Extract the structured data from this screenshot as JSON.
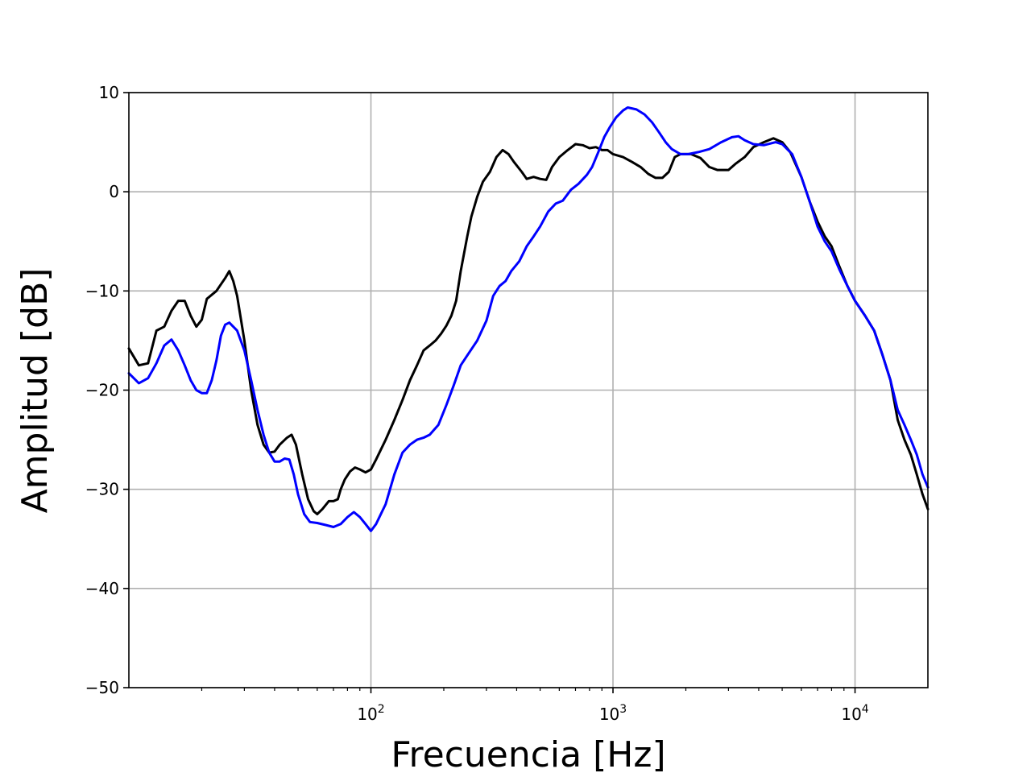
{
  "chart_data": {
    "type": "line",
    "xlabel": "Frecuencia [Hz]",
    "ylabel": "Amplitud [dB]",
    "xscale": "log",
    "xlim": [
      10,
      20000
    ],
    "ylim": [
      -50,
      10
    ],
    "grid": true,
    "x_ticks": [
      {
        "value": 100,
        "base": "10",
        "exp": "2"
      },
      {
        "value": 1000,
        "base": "10",
        "exp": "3"
      },
      {
        "value": 10000,
        "base": "10",
        "exp": "4"
      }
    ],
    "y_ticks": [
      10,
      0,
      -10,
      -20,
      -30,
      -40,
      -50
    ],
    "y_tick_labels": [
      "10",
      "0",
      "−10",
      "−20",
      "−30",
      "−40",
      "−50"
    ],
    "series": [
      {
        "color": "#000000",
        "points": [
          [
            10,
            -15.8
          ],
          [
            11,
            -17.5
          ],
          [
            12,
            -17.3
          ],
          [
            13,
            -14.0
          ],
          [
            14,
            -13.6
          ],
          [
            15,
            -12.0
          ],
          [
            16,
            -11.0
          ],
          [
            17,
            -11.0
          ],
          [
            18,
            -12.5
          ],
          [
            19,
            -13.6
          ],
          [
            20,
            -12.9
          ],
          [
            21,
            -10.8
          ],
          [
            23,
            -10.0
          ],
          [
            25,
            -8.7
          ],
          [
            26,
            -8.0
          ],
          [
            27,
            -9.0
          ],
          [
            28,
            -10.5
          ],
          [
            30,
            -15.0
          ],
          [
            32,
            -20.0
          ],
          [
            34,
            -23.5
          ],
          [
            36,
            -25.5
          ],
          [
            38,
            -26.3
          ],
          [
            40,
            -26.2
          ],
          [
            42,
            -25.5
          ],
          [
            45,
            -24.8
          ],
          [
            47,
            -24.5
          ],
          [
            49,
            -25.5
          ],
          [
            52,
            -28.5
          ],
          [
            55,
            -31.0
          ],
          [
            58,
            -32.2
          ],
          [
            60,
            -32.5
          ],
          [
            63,
            -32.0
          ],
          [
            67,
            -31.2
          ],
          [
            70,
            -31.2
          ],
          [
            73,
            -31.0
          ],
          [
            75,
            -30.0
          ],
          [
            78,
            -29.0
          ],
          [
            82,
            -28.2
          ],
          [
            86,
            -27.8
          ],
          [
            90,
            -28.0
          ],
          [
            95,
            -28.3
          ],
          [
            100,
            -28.0
          ],
          [
            105,
            -27.0
          ],
          [
            115,
            -25.0
          ],
          [
            125,
            -23.0
          ],
          [
            135,
            -21.0
          ],
          [
            145,
            -19.0
          ],
          [
            155,
            -17.5
          ],
          [
            165,
            -16.0
          ],
          [
            175,
            -15.5
          ],
          [
            185,
            -15.0
          ],
          [
            195,
            -14.3
          ],
          [
            205,
            -13.5
          ],
          [
            215,
            -12.5
          ],
          [
            225,
            -11.0
          ],
          [
            235,
            -8.0
          ],
          [
            250,
            -4.5
          ],
          [
            260,
            -2.5
          ],
          [
            275,
            -0.5
          ],
          [
            290,
            1.0
          ],
          [
            310,
            2.0
          ],
          [
            330,
            3.5
          ],
          [
            350,
            4.2
          ],
          [
            370,
            3.8
          ],
          [
            390,
            3.0
          ],
          [
            420,
            2.0
          ],
          [
            440,
            1.3
          ],
          [
            470,
            1.5
          ],
          [
            500,
            1.3
          ],
          [
            530,
            1.2
          ],
          [
            560,
            2.5
          ],
          [
            600,
            3.5
          ],
          [
            650,
            4.2
          ],
          [
            700,
            4.8
          ],
          [
            750,
            4.7
          ],
          [
            800,
            4.4
          ],
          [
            850,
            4.5
          ],
          [
            900,
            4.2
          ],
          [
            950,
            4.2
          ],
          [
            1000,
            3.8
          ],
          [
            1100,
            3.5
          ],
          [
            1200,
            3.0
          ],
          [
            1300,
            2.5
          ],
          [
            1400,
            1.8
          ],
          [
            1500,
            1.4
          ],
          [
            1600,
            1.4
          ],
          [
            1700,
            2.0
          ],
          [
            1800,
            3.5
          ],
          [
            1900,
            3.8
          ],
          [
            2100,
            3.8
          ],
          [
            2300,
            3.4
          ],
          [
            2500,
            2.5
          ],
          [
            2700,
            2.2
          ],
          [
            3000,
            2.2
          ],
          [
            3200,
            2.8
          ],
          [
            3500,
            3.5
          ],
          [
            3800,
            4.5
          ],
          [
            4200,
            5.0
          ],
          [
            4600,
            5.4
          ],
          [
            5000,
            5.0
          ],
          [
            5400,
            4.0
          ],
          [
            6000,
            1.5
          ],
          [
            6500,
            -1.0
          ],
          [
            7000,
            -3.0
          ],
          [
            7500,
            -4.5
          ],
          [
            8000,
            -5.5
          ],
          [
            8600,
            -7.5
          ],
          [
            9300,
            -9.5
          ],
          [
            10000,
            -11.0
          ],
          [
            11000,
            -12.5
          ],
          [
            12000,
            -14.0
          ],
          [
            13000,
            -16.5
          ],
          [
            14000,
            -19.0
          ],
          [
            15000,
            -23.0
          ],
          [
            16000,
            -25.0
          ],
          [
            17000,
            -26.5
          ],
          [
            18000,
            -28.5
          ],
          [
            19000,
            -30.5
          ],
          [
            20000,
            -32.0
          ]
        ]
      },
      {
        "color": "#0000ff",
        "points": [
          [
            10,
            -18.3
          ],
          [
            11,
            -19.3
          ],
          [
            12,
            -18.8
          ],
          [
            13,
            -17.3
          ],
          [
            14,
            -15.5
          ],
          [
            15,
            -14.9
          ],
          [
            16,
            -16.0
          ],
          [
            17,
            -17.5
          ],
          [
            18,
            -19.0
          ],
          [
            19,
            -20.0
          ],
          [
            20,
            -20.3
          ],
          [
            21,
            -20.3
          ],
          [
            22,
            -19.0
          ],
          [
            23,
            -17.0
          ],
          [
            24,
            -14.5
          ],
          [
            25,
            -13.4
          ],
          [
            26,
            -13.2
          ],
          [
            28,
            -14.0
          ],
          [
            30,
            -16.0
          ],
          [
            32,
            -19.0
          ],
          [
            34,
            -22.0
          ],
          [
            36,
            -24.5
          ],
          [
            38,
            -26.3
          ],
          [
            40,
            -27.2
          ],
          [
            42,
            -27.2
          ],
          [
            44,
            -26.9
          ],
          [
            46,
            -27.0
          ],
          [
            48,
            -28.5
          ],
          [
            50,
            -30.5
          ],
          [
            53,
            -32.5
          ],
          [
            56,
            -33.3
          ],
          [
            60,
            -33.4
          ],
          [
            65,
            -33.6
          ],
          [
            70,
            -33.8
          ],
          [
            75,
            -33.5
          ],
          [
            80,
            -32.8
          ],
          [
            85,
            -32.3
          ],
          [
            90,
            -32.8
          ],
          [
            95,
            -33.5
          ],
          [
            100,
            -34.2
          ],
          [
            105,
            -33.5
          ],
          [
            115,
            -31.5
          ],
          [
            125,
            -28.5
          ],
          [
            135,
            -26.3
          ],
          [
            145,
            -25.5
          ],
          [
            155,
            -25.0
          ],
          [
            165,
            -24.8
          ],
          [
            175,
            -24.5
          ],
          [
            190,
            -23.5
          ],
          [
            205,
            -21.5
          ],
          [
            220,
            -19.5
          ],
          [
            235,
            -17.5
          ],
          [
            250,
            -16.5
          ],
          [
            275,
            -15.0
          ],
          [
            300,
            -13.0
          ],
          [
            320,
            -10.5
          ],
          [
            340,
            -9.5
          ],
          [
            360,
            -9.0
          ],
          [
            380,
            -8.0
          ],
          [
            410,
            -7.0
          ],
          [
            440,
            -5.5
          ],
          [
            470,
            -4.5
          ],
          [
            500,
            -3.5
          ],
          [
            540,
            -2.0
          ],
          [
            580,
            -1.2
          ],
          [
            620,
            -0.9
          ],
          [
            670,
            0.2
          ],
          [
            720,
            0.8
          ],
          [
            780,
            1.7
          ],
          [
            820,
            2.5
          ],
          [
            870,
            4.0
          ],
          [
            920,
            5.5
          ],
          [
            970,
            6.5
          ],
          [
            1030,
            7.5
          ],
          [
            1100,
            8.2
          ],
          [
            1150,
            8.5
          ],
          [
            1250,
            8.3
          ],
          [
            1350,
            7.8
          ],
          [
            1450,
            7.0
          ],
          [
            1550,
            6.0
          ],
          [
            1650,
            5.0
          ],
          [
            1750,
            4.3
          ],
          [
            1900,
            3.8
          ],
          [
            2050,
            3.8
          ],
          [
            2250,
            4.0
          ],
          [
            2500,
            4.3
          ],
          [
            2800,
            5.0
          ],
          [
            3100,
            5.5
          ],
          [
            3300,
            5.6
          ],
          [
            3500,
            5.2
          ],
          [
            3800,
            4.8
          ],
          [
            4200,
            4.7
          ],
          [
            4700,
            5.0
          ],
          [
            5000,
            4.8
          ],
          [
            5500,
            3.8
          ],
          [
            6000,
            1.5
          ],
          [
            6500,
            -1.0
          ],
          [
            7000,
            -3.5
          ],
          [
            7500,
            -5.0
          ],
          [
            8000,
            -6.0
          ],
          [
            8600,
            -7.8
          ],
          [
            9300,
            -9.5
          ],
          [
            10000,
            -11.0
          ],
          [
            11000,
            -12.5
          ],
          [
            12000,
            -14.0
          ],
          [
            13000,
            -16.5
          ],
          [
            14000,
            -19.0
          ],
          [
            15000,
            -22.0
          ],
          [
            16000,
            -23.5
          ],
          [
            17000,
            -25.0
          ],
          [
            18000,
            -26.5
          ],
          [
            19000,
            -28.5
          ],
          [
            20000,
            -29.8
          ]
        ]
      }
    ]
  }
}
